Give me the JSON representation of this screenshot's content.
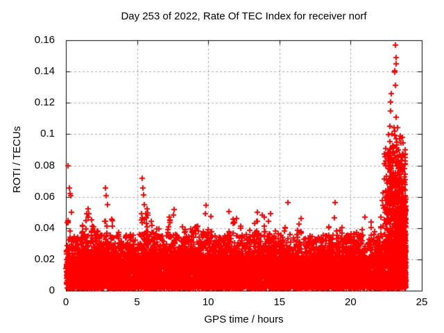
{
  "page": {
    "background": "#ffffff",
    "text_color": "#000000"
  },
  "chart_data": {
    "type": "scatter",
    "title": "Day 253 of 2022, Rate Of TEC Index for receiver norf",
    "xlabel": "GPS time / hours",
    "ylabel": "ROTI / TECUs",
    "xlim": [
      0,
      25
    ],
    "ylim": [
      0,
      0.16
    ],
    "xticks": {
      "values": [
        0,
        5,
        10,
        15,
        20,
        25
      ],
      "labels": [
        "0",
        "5",
        "10",
        "15",
        "20",
        "25"
      ]
    },
    "yticks": {
      "values": [
        0,
        0.02,
        0.04,
        0.06,
        0.08,
        0.1,
        0.12,
        0.14,
        0.16
      ],
      "labels": [
        "0",
        "0.02",
        "0.04",
        "0.06",
        "0.08",
        "0.1",
        "0.12",
        "0.14",
        "0.16"
      ]
    },
    "grid": true,
    "grid_style": "dashed",
    "grid_color": "#a8a8a8",
    "axis_color": "#000000",
    "legend": "none",
    "series_name": "ROTI",
    "marker": {
      "shape": "plus",
      "color": "#ff0000",
      "size": 9,
      "stroke": 2
    },
    "x_start": 0.02,
    "x_end": 23.87,
    "envelope": [
      [
        0.0,
        0.049
      ],
      [
        0.5,
        0.042
      ],
      [
        1.0,
        0.036
      ],
      [
        1.5,
        0.053
      ],
      [
        2.0,
        0.044
      ],
      [
        2.5,
        0.04
      ],
      [
        3.0,
        0.058
      ],
      [
        3.5,
        0.048
      ],
      [
        4.0,
        0.042
      ],
      [
        4.5,
        0.037
      ],
      [
        5.0,
        0.045
      ],
      [
        5.5,
        0.06
      ],
      [
        6.0,
        0.048
      ],
      [
        6.5,
        0.04
      ],
      [
        7.0,
        0.043
      ],
      [
        7.5,
        0.052
      ],
      [
        8.0,
        0.049
      ],
      [
        8.5,
        0.042
      ],
      [
        9.0,
        0.045
      ],
      [
        9.5,
        0.052
      ],
      [
        10.0,
        0.054
      ],
      [
        10.5,
        0.043
      ],
      [
        11.0,
        0.041
      ],
      [
        11.5,
        0.051
      ],
      [
        12.0,
        0.047
      ],
      [
        12.5,
        0.04
      ],
      [
        13.0,
        0.045
      ],
      [
        13.5,
        0.051
      ],
      [
        14.0,
        0.049
      ],
      [
        14.5,
        0.044
      ],
      [
        15.0,
        0.038
      ],
      [
        15.5,
        0.052
      ],
      [
        16.0,
        0.041
      ],
      [
        16.5,
        0.046
      ],
      [
        17.0,
        0.043
      ],
      [
        17.5,
        0.039
      ],
      [
        18.0,
        0.037
      ],
      [
        18.5,
        0.045
      ],
      [
        19.0,
        0.05
      ],
      [
        19.5,
        0.039
      ],
      [
        20.0,
        0.037
      ],
      [
        20.5,
        0.045
      ],
      [
        21.0,
        0.041
      ],
      [
        21.5,
        0.047
      ],
      [
        22.0,
        0.052
      ],
      [
        22.5,
        0.08
      ],
      [
        23.0,
        0.1
      ],
      [
        23.5,
        0.085
      ],
      [
        23.87,
        0.06
      ]
    ],
    "outliers": [
      [
        0.15,
        0.08
      ],
      [
        0.25,
        0.0655
      ],
      [
        0.3,
        0.062
      ],
      [
        0.33,
        0.0605
      ],
      [
        0.4,
        0.05
      ],
      [
        1.55,
        0.0525
      ],
      [
        1.6,
        0.049
      ],
      [
        2.8,
        0.0655
      ],
      [
        2.85,
        0.0605
      ],
      [
        2.9,
        0.055
      ],
      [
        5.35,
        0.072
      ],
      [
        5.4,
        0.0655
      ],
      [
        5.45,
        0.061
      ],
      [
        5.5,
        0.055
      ],
      [
        7.6,
        0.052
      ],
      [
        9.85,
        0.0545
      ],
      [
        11.45,
        0.0505
      ],
      [
        12.0,
        0.046
      ],
      [
        13.45,
        0.05
      ],
      [
        13.8,
        0.0485
      ],
      [
        14.4,
        0.049
      ],
      [
        15.6,
        0.0565
      ],
      [
        16.5,
        0.046
      ],
      [
        18.9,
        0.0565
      ],
      [
        21.0,
        0.047
      ],
      [
        22.75,
        0.105
      ],
      [
        22.8,
        0.1205
      ],
      [
        22.82,
        0.115
      ],
      [
        22.85,
        0.126
      ],
      [
        22.9,
        0.1
      ],
      [
        22.95,
        0.088
      ],
      [
        23.0,
        0.092
      ],
      [
        23.05,
        0.104
      ],
      [
        23.08,
        0.1405
      ],
      [
        23.1,
        0.14
      ],
      [
        23.1,
        0.102
      ],
      [
        23.12,
        0.1395
      ],
      [
        23.13,
        0.131
      ],
      [
        23.15,
        0.157
      ],
      [
        23.18,
        0.145
      ],
      [
        23.2,
        0.149
      ],
      [
        23.22,
        0.111
      ],
      [
        23.25,
        0.095
      ],
      [
        23.3,
        0.104
      ],
      [
        23.35,
        0.09
      ],
      [
        23.4,
        0.082
      ]
    ],
    "gen": {
      "seed": 1234,
      "band": {
        "n": 6500,
        "base": 0.0015,
        "range": 0.02,
        "pow": 1.5
      },
      "mid": {
        "n": 2200,
        "base": 0.016,
        "range": 0.02,
        "pow": 2.6
      },
      "spikes": {
        "step": 0.13,
        "xjitter": 0.09,
        "min_peak": 0.022,
        "n_min": 5,
        "n_rand": 9,
        "base": 0.014,
        "pow": 1.9
      },
      "burst": {
        "x0": 22.35,
        "span": 1.52,
        "n": 500,
        "base": 0.018,
        "range": 0.075,
        "pow": 2.1
      },
      "wall": {
        "x0": 23.2,
        "span": 0.67,
        "n": 700,
        "base": 0.002,
        "range": 0.052,
        "pow": 1.15
      },
      "upper": {
        "x0": 22.55,
        "span": 1.15,
        "n": 80,
        "base": 0.055,
        "range": 0.045,
        "pow": 1.6
      }
    }
  }
}
